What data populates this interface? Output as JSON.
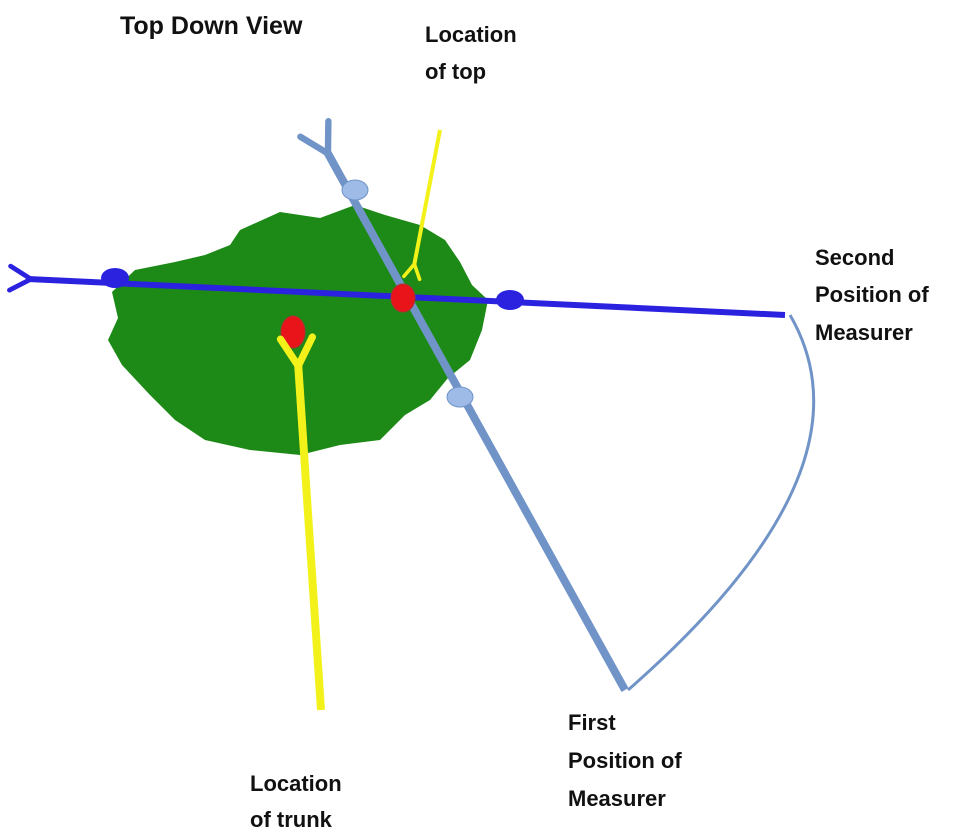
{
  "title": "Top Down View",
  "labels": {
    "top": {
      "lines": [
        "Location",
        "of top"
      ]
    },
    "trunk": {
      "lines": [
        "Location",
        "of trunk"
      ]
    },
    "first": {
      "lines": [
        "First",
        "Position of",
        "Measurer"
      ]
    },
    "second": {
      "lines": [
        "Second",
        "Position of",
        "Measurer"
      ]
    }
  }
}
